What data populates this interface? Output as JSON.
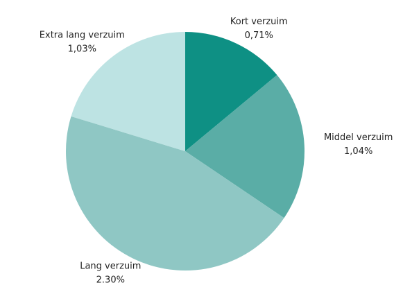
{
  "chart_data": {
    "type": "pie",
    "categories": [
      "Kort verzuim",
      "Middel verzuim",
      "Lang verzuim",
      "Extra lang verzuim"
    ],
    "values": [
      0.71,
      1.04,
      2.3,
      1.03
    ],
    "value_labels": [
      "0,71%",
      "1,04%",
      "2.30%",
      "1,03%"
    ],
    "colors": [
      "#0e9084",
      "#5aada6",
      "#8fc7c4",
      "#bde3e3"
    ]
  }
}
